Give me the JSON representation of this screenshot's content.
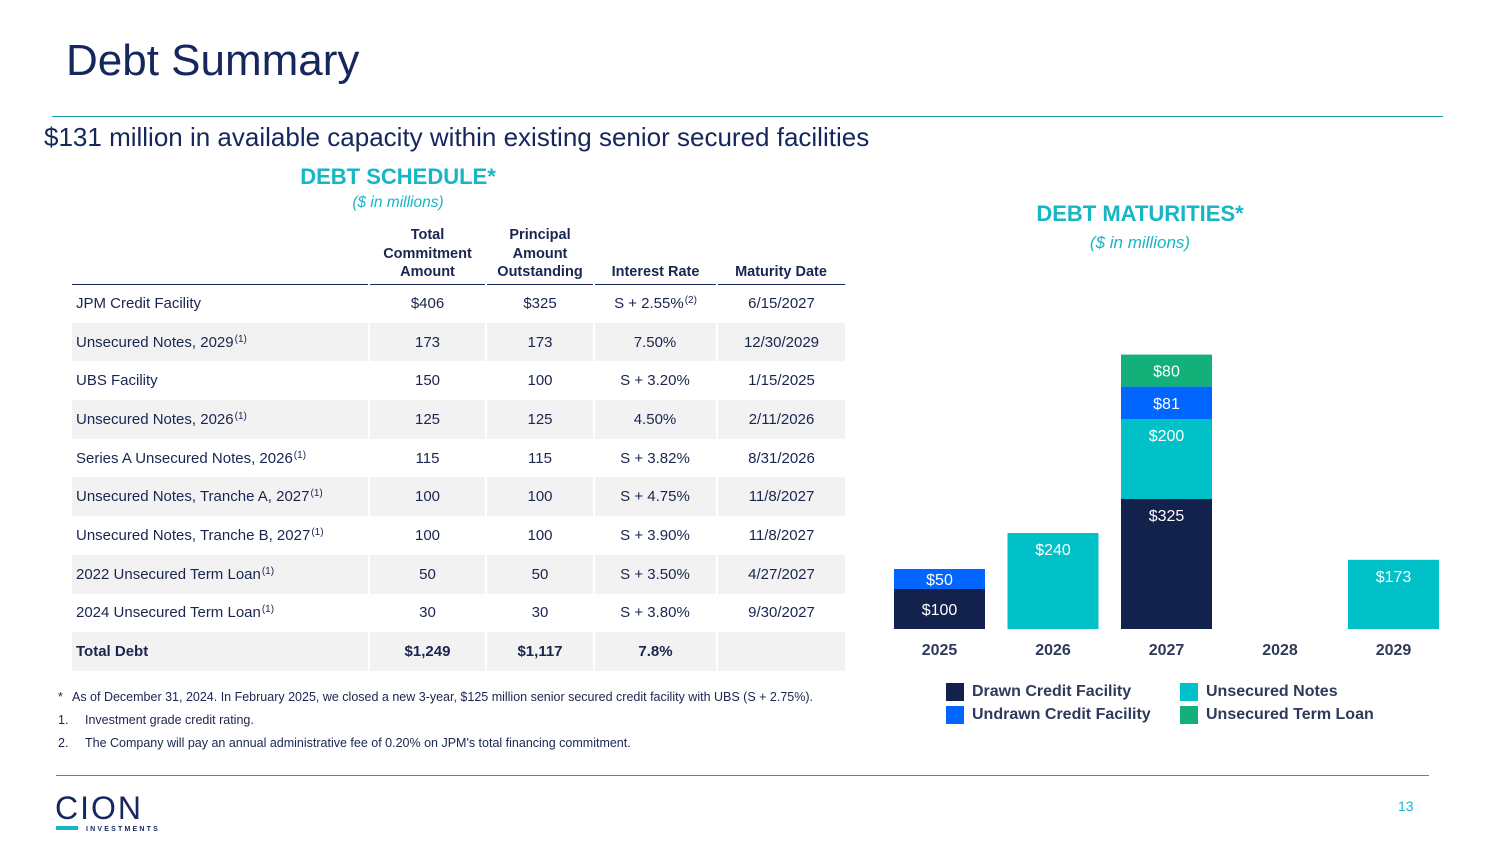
{
  "title": "Debt Summary",
  "subtitle": "$131 million in available capacity within existing senior secured facilities",
  "schedule": {
    "title": "DEBT SCHEDULE*",
    "units": "($ in millions)",
    "headers": {
      "name": "",
      "commitment_l1": "Total",
      "commitment_l2": "Commitment",
      "commitment_l3": "Amount",
      "principal_l1": "Principal",
      "principal_l2": "Amount",
      "principal_l3": "Outstanding",
      "rate": "Interest Rate",
      "maturity": "Maturity Date"
    },
    "rows": [
      {
        "name": "JPM Credit Facility",
        "sup": "",
        "commitment": "$406",
        "principal": "$325",
        "rate": "S + 2.55%",
        "rate_sup": "(2)",
        "maturity": "6/15/2027"
      },
      {
        "name": "Unsecured Notes, 2029",
        "sup": "(1)",
        "commitment": "173",
        "principal": "173",
        "rate": "7.50%",
        "rate_sup": "",
        "maturity": "12/30/2029"
      },
      {
        "name": "UBS Facility",
        "sup": "",
        "commitment": "150",
        "principal": "100",
        "rate": "S + 3.20%",
        "rate_sup": "",
        "maturity": "1/15/2025"
      },
      {
        "name": "Unsecured Notes, 2026",
        "sup": "(1)",
        "commitment": "125",
        "principal": "125",
        "rate": "4.50%",
        "rate_sup": "",
        "maturity": "2/11/2026"
      },
      {
        "name": "Series A Unsecured Notes, 2026",
        "sup": "(1)",
        "commitment": "115",
        "principal": "115",
        "rate": "S + 3.82%",
        "rate_sup": "",
        "maturity": "8/31/2026"
      },
      {
        "name": "Unsecured Notes, Tranche A, 2027",
        "sup": "(1)",
        "commitment": "100",
        "principal": "100",
        "rate": "S + 4.75%",
        "rate_sup": "",
        "maturity": "11/8/2027"
      },
      {
        "name": "Unsecured Notes, Tranche B, 2027",
        "sup": "(1)",
        "commitment": "100",
        "principal": "100",
        "rate": "S + 3.90%",
        "rate_sup": "",
        "maturity": "11/8/2027"
      },
      {
        "name": "2022 Unsecured Term Loan",
        "sup": "(1)",
        "commitment": "50",
        "principal": "50",
        "rate": "S + 3.50%",
        "rate_sup": "",
        "maturity": "4/27/2027"
      },
      {
        "name": "2024 Unsecured Term Loan",
        "sup": "(1)",
        "commitment": "30",
        "principal": "30",
        "rate": "S + 3.80%",
        "rate_sup": "",
        "maturity": "9/30/2027"
      }
    ],
    "total": {
      "name": "Total Debt",
      "commitment": "$1,249",
      "principal": "$1,117",
      "rate": "7.8%",
      "maturity": ""
    }
  },
  "maturities": {
    "title": "DEBT MATURITIES*",
    "units": "($ in millions)"
  },
  "chart_data": {
    "type": "bar",
    "stacked": true,
    "categories": [
      "2025",
      "2026",
      "2027",
      "2028",
      "2029"
    ],
    "series": [
      {
        "name": "Drawn Credit Facility",
        "color": "#13224d",
        "values": [
          100,
          0,
          325,
          0,
          0
        ],
        "labels": [
          "$100",
          "",
          "$325",
          "",
          ""
        ]
      },
      {
        "name": "Unsecured Notes",
        "color": "#00c1c8",
        "values": [
          0,
          240,
          200,
          0,
          173
        ],
        "labels": [
          "",
          "$240",
          "$200",
          "",
          "$173"
        ]
      },
      {
        "name": "Undrawn Credit Facility",
        "color": "#0066ff",
        "values": [
          50,
          0,
          81,
          0,
          0
        ],
        "labels": [
          "$50",
          "",
          "$81",
          "",
          ""
        ]
      },
      {
        "name": "Unsecured Term Loan",
        "color": "#14b07a",
        "values": [
          0,
          0,
          80,
          0,
          0
        ],
        "labels": [
          "",
          "",
          "$80",
          "",
          ""
        ]
      }
    ],
    "ylim": [
      0,
      700
    ],
    "legend_position": "bottom"
  },
  "footnotes": [
    {
      "marker": "*",
      "text": "As of December 31, 2024. In February 2025, we closed a new 3-year, $125 million senior secured credit facility with UBS (S + 2.75%)."
    },
    {
      "marker": "1.",
      "text": "Investment grade credit rating."
    },
    {
      "marker": "2.",
      "text": "The Company will pay an annual administrative fee of 0.20% on JPM's total financing commitment."
    }
  ],
  "logo_text": "CION",
  "logo_sub": "INVESTMENTS",
  "page_number": "13"
}
